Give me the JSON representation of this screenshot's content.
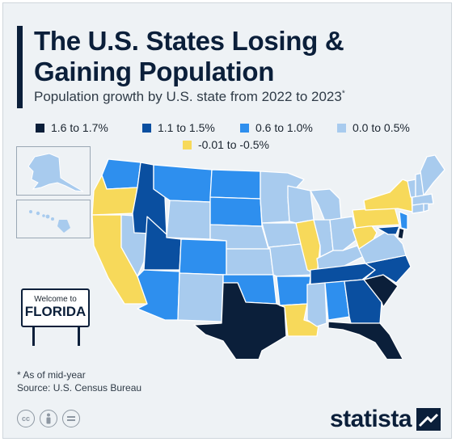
{
  "header": {
    "title_line1": "The U.S. States Losing &",
    "title_line2": "Gaining Population",
    "subtitle": "Population growth by U.S. state from 2022 to 2023",
    "subtitle_mark": "*"
  },
  "legend": [
    {
      "label": "1.6 to 1.7%",
      "color": "#0b1f3a"
    },
    {
      "label": "1.1 to 1.5%",
      "color": "#0a4fa0"
    },
    {
      "label": "0.6 to 1.0%",
      "color": "#2e8fee"
    },
    {
      "label": "0.0 to 0.5%",
      "color": "#a8cbee"
    },
    {
      "label": "-0.01 to -0.5%",
      "color": "#f7d95a"
    }
  ],
  "sign": {
    "top": "Welcome to",
    "main": "FLORIDA"
  },
  "footnotes": {
    "note": "* As of mid-year",
    "source": "Source: U.S. Census Bureau"
  },
  "brand": {
    "name": "statista"
  },
  "license_icons": [
    "cc-icon",
    "attribution-icon",
    "no-derivatives-icon"
  ],
  "colors": {
    "background": "#eef2f5",
    "title": "#0b1f3a",
    "border": "#ffffff"
  },
  "map": {
    "categories": {
      "1.6 to 1.7%": [
        "Texas",
        "South Carolina",
        "Florida",
        "Delaware"
      ],
      "1.1 to 1.5%": [
        "Idaho",
        "Utah",
        "Tennessee",
        "North Carolina",
        "Georgia",
        "Maryland"
      ],
      "0.6 to 1.0%": [
        "Washington",
        "Montana",
        "North Dakota",
        "South Dakota",
        "Nevada",
        "Colorado",
        "Arizona",
        "Oklahoma",
        "Arkansas",
        "Alabama",
        "New Jersey"
      ],
      "0.0 to 0.5%": [
        "Alaska",
        "Wyoming",
        "Nebraska",
        "Kansas",
        "Minnesota",
        "Iowa",
        "Missouri",
        "Wisconsin",
        "Michigan",
        "Indiana",
        "Ohio",
        "Kentucky",
        "Virginia",
        "Mississippi",
        "New Mexico",
        "Maine",
        "New Hampshire",
        "Vermont",
        "Massachusetts",
        "Connecticut",
        "Rhode Island",
        "Hawaii"
      ],
      "-0.01 to -0.5%": [
        "California",
        "Oregon",
        "Illinois",
        "Louisiana",
        "West Virginia",
        "New York",
        "Pennsylvania"
      ]
    }
  }
}
